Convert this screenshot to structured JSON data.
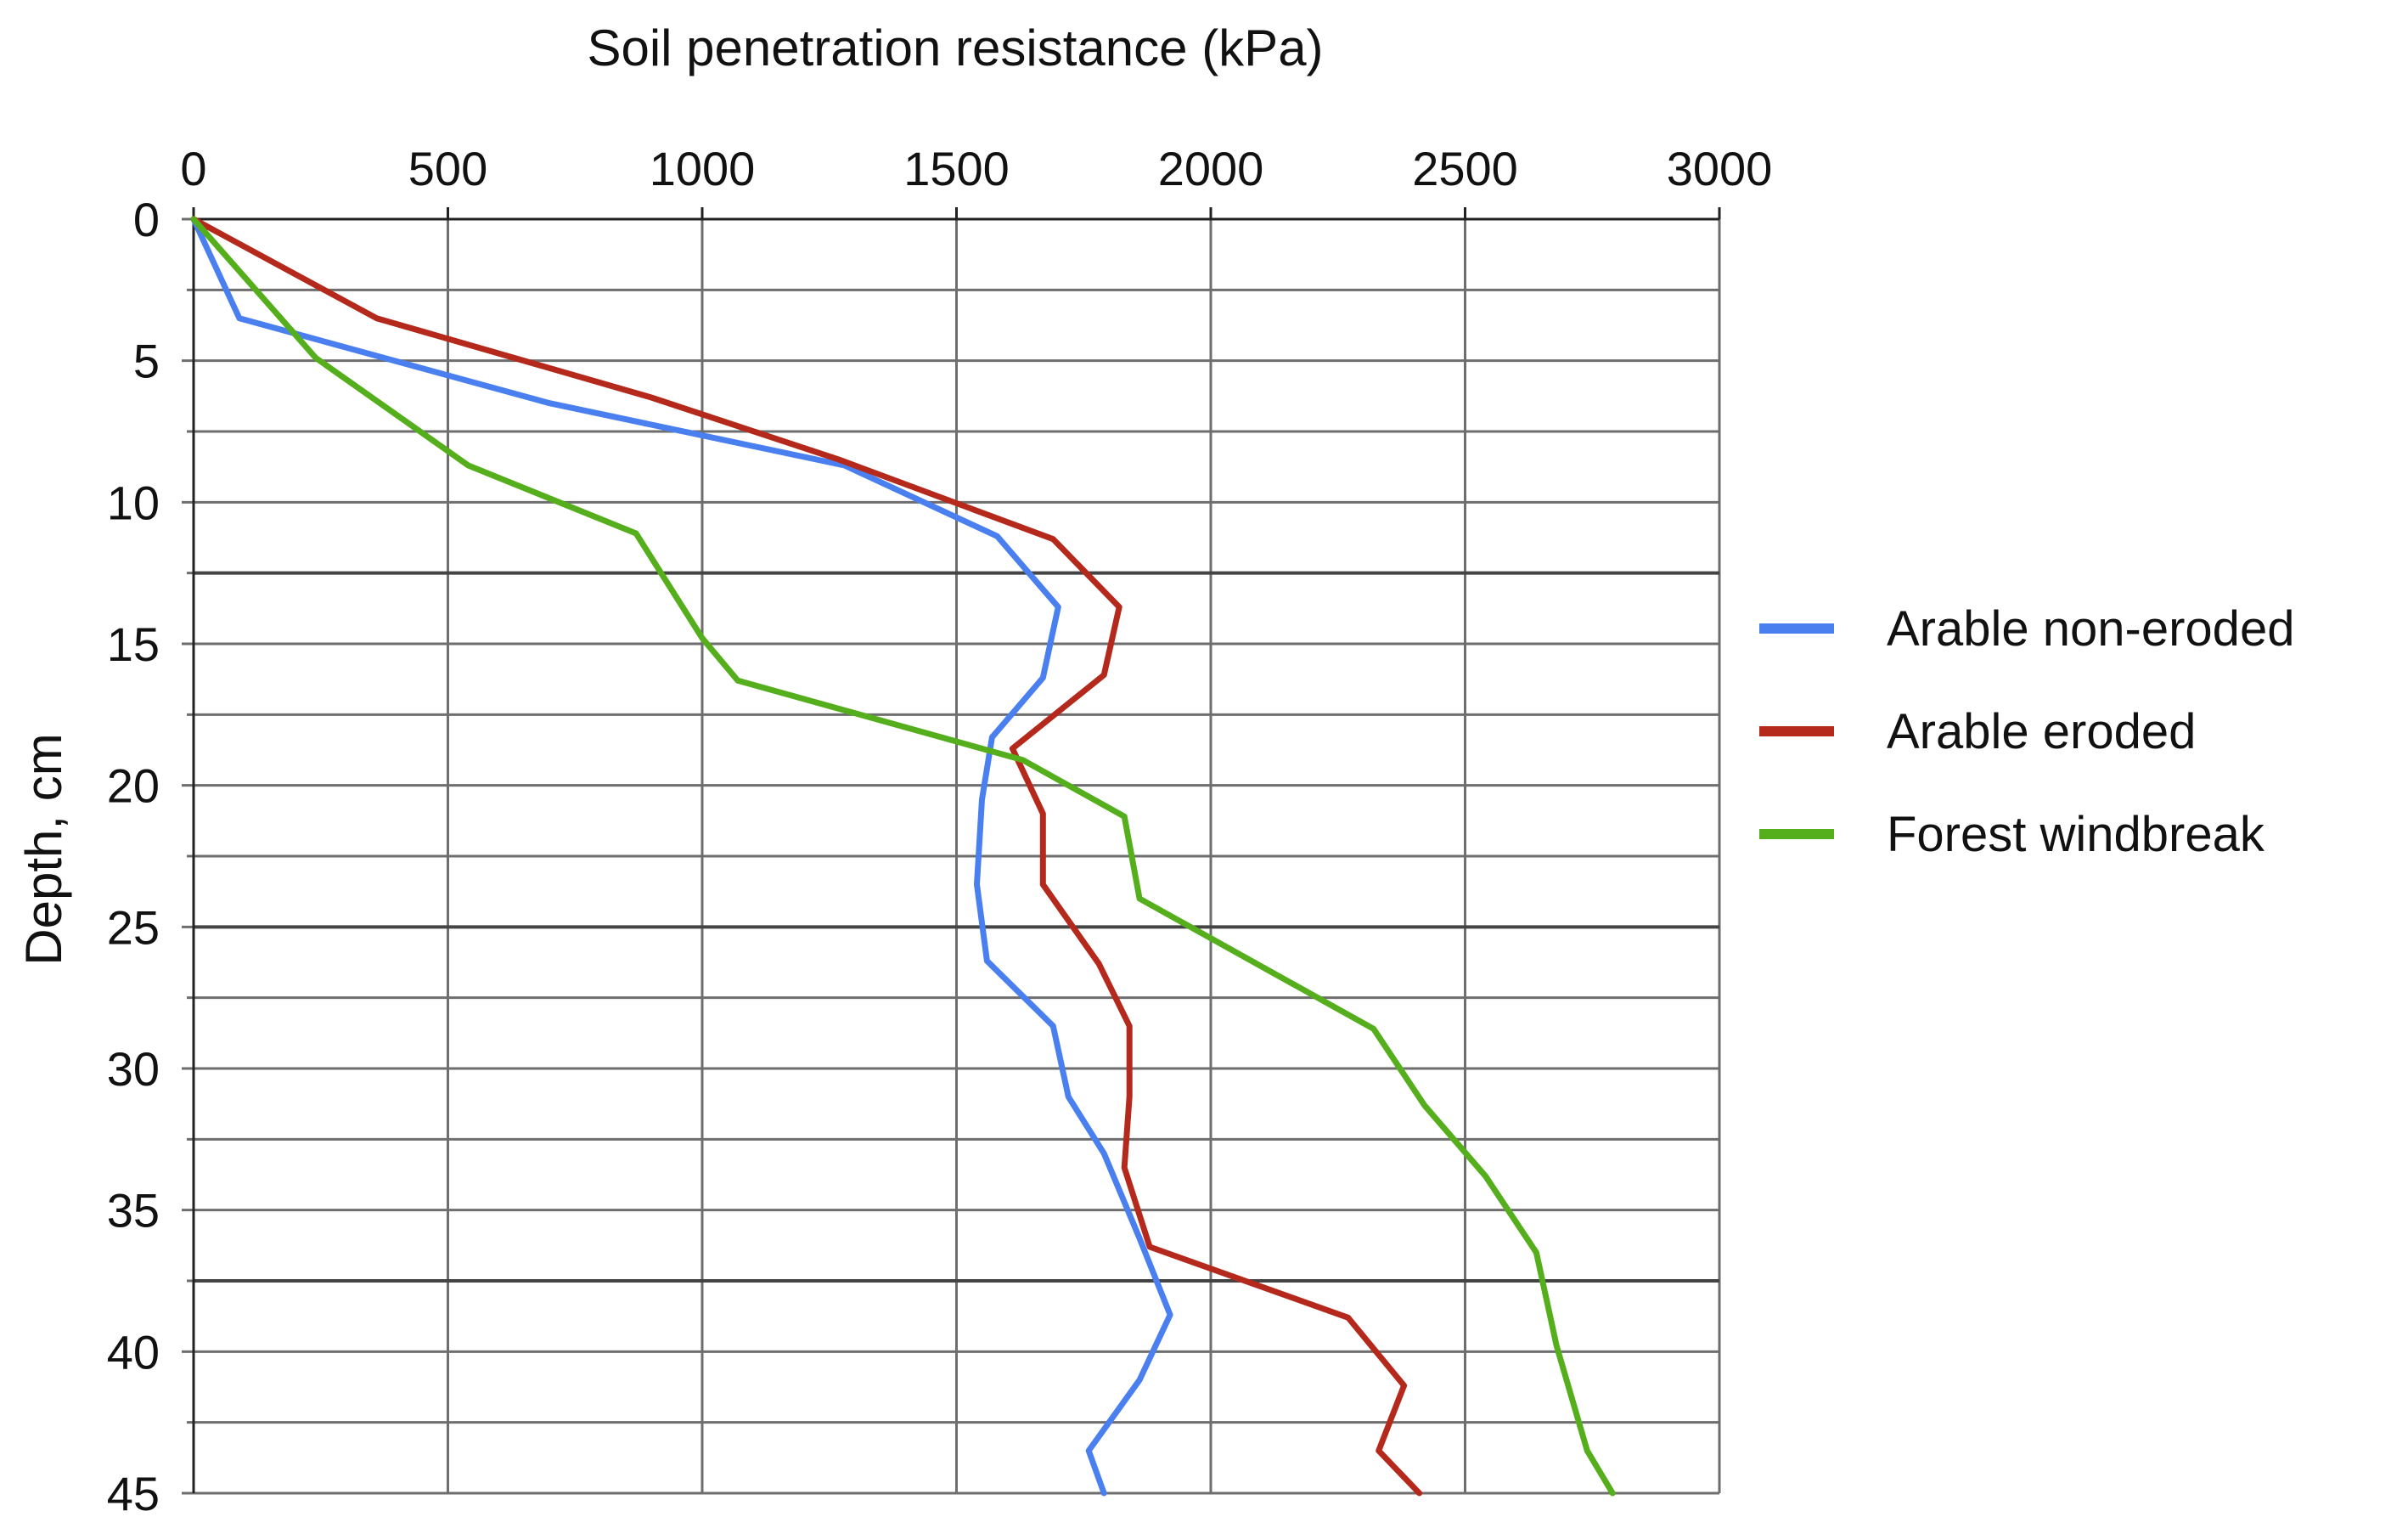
{
  "chart_data": {
    "type": "line",
    "title": "",
    "xlabel": "Soil penetration resistance (kPa)",
    "ylabel": "Depth, cm",
    "xlim": [
      0,
      3000
    ],
    "ylim": [
      0,
      45
    ],
    "y_inverted": true,
    "x_ticks": [
      0,
      500,
      1000,
      1500,
      2000,
      2500,
      3000
    ],
    "y_ticks": [
      0,
      5,
      10,
      15,
      20,
      25,
      30,
      35,
      40,
      45
    ],
    "x_tick_labels": [
      "0",
      "500",
      "1000",
      "1500",
      "2000",
      "2500",
      "3000"
    ],
    "y_tick_labels": [
      "0",
      "5",
      "10",
      "15",
      "20",
      "25",
      "30",
      "35",
      "40",
      "45"
    ],
    "grid": true,
    "legend_position": "right",
    "series": [
      {
        "name": "Arable non-eroded",
        "color": "#4a7ff0",
        "points": [
          [
            0,
            0
          ],
          [
            90,
            3.5
          ],
          [
            700,
            6.5
          ],
          [
            1280,
            8.7
          ],
          [
            1580,
            11.2
          ],
          [
            1700,
            13.7
          ],
          [
            1670,
            16.2
          ],
          [
            1570,
            18.3
          ],
          [
            1550,
            20.5
          ],
          [
            1540,
            23.5
          ],
          [
            1560,
            26.2
          ],
          [
            1690,
            28.5
          ],
          [
            1720,
            31
          ],
          [
            1790,
            33
          ],
          [
            1860,
            36
          ],
          [
            1920,
            38.7
          ],
          [
            1860,
            41
          ],
          [
            1760,
            43.5
          ],
          [
            1790,
            45
          ]
        ]
      },
      {
        "name": "Arable eroded",
        "color": "#b5291c",
        "points": [
          [
            0,
            0
          ],
          [
            360,
            3.5
          ],
          [
            900,
            6.3
          ],
          [
            1270,
            8.5
          ],
          [
            1690,
            11.3
          ],
          [
            1820,
            13.7
          ],
          [
            1790,
            16.1
          ],
          [
            1610,
            18.7
          ],
          [
            1670,
            21
          ],
          [
            1670,
            23.5
          ],
          [
            1780,
            26.3
          ],
          [
            1840,
            28.5
          ],
          [
            1840,
            31
          ],
          [
            1830,
            33.5
          ],
          [
            1880,
            36.3
          ],
          [
            2270,
            38.8
          ],
          [
            2380,
            41.2
          ],
          [
            2330,
            43.5
          ],
          [
            2410,
            45
          ]
        ]
      },
      {
        "name": "Forest windbreak",
        "color": "#55ae1c",
        "points": [
          [
            0,
            0
          ],
          [
            240,
            4.9
          ],
          [
            540,
            8.7
          ],
          [
            870,
            11.1
          ],
          [
            1000,
            14.8
          ],
          [
            1070,
            16.3
          ],
          [
            1630,
            19.1
          ],
          [
            1830,
            21.1
          ],
          [
            1860,
            24
          ],
          [
            2320,
            28.6
          ],
          [
            2420,
            31.3
          ],
          [
            2540,
            33.8
          ],
          [
            2640,
            36.5
          ],
          [
            2680,
            39.8
          ],
          [
            2740,
            43.5
          ],
          [
            2790,
            45
          ]
        ]
      }
    ]
  }
}
